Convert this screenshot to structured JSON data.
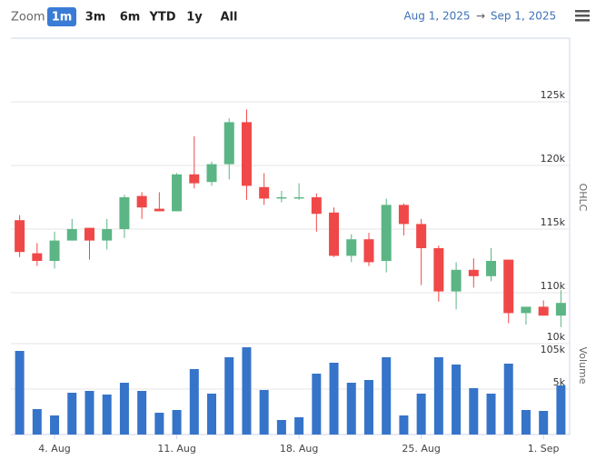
{
  "range_selector": {
    "label": "Zoom",
    "buttons": [
      "1m",
      "3m",
      "6m",
      "YTD",
      "1y",
      "All"
    ],
    "selected": 0,
    "from": "Aug 1, 2025",
    "separator": "→",
    "to": "Sep 1, 2025"
  },
  "chart_data": {
    "type": "candlestick",
    "ylabel": "OHLC",
    "y2label": "Volume",
    "xlim": [
      -0.5,
      31.5
    ],
    "xticks": [
      {
        "value": 2,
        "label": "4. Aug"
      },
      {
        "value": 9,
        "label": "11. Aug"
      },
      {
        "value": 16,
        "label": "18. Aug"
      },
      {
        "value": 23,
        "label": "25. Aug"
      },
      {
        "value": 30,
        "label": "1. Sep"
      }
    ],
    "ylim": [
      105000,
      130000
    ],
    "yticks": [
      {
        "value": 105000,
        "label": "105k"
      },
      {
        "value": 110000,
        "label": "110k"
      },
      {
        "value": 115000,
        "label": "115k"
      },
      {
        "value": 120000,
        "label": "120k"
      },
      {
        "value": 125000,
        "label": "125k"
      }
    ],
    "y2lim": [
      0,
      10000
    ],
    "y2ticks": [
      {
        "value": 5000,
        "label": "5k"
      },
      {
        "value": 10000,
        "label": "10k"
      }
    ],
    "grid": true,
    "series": [
      {
        "type": "candlestick",
        "up_color": "#5bb584",
        "down_color": "#f04848",
        "open": [
          115700,
          113100,
          112500,
          114100,
          115100,
          114100,
          115000,
          117600,
          116600,
          116400,
          119300,
          118700,
          120100,
          123400,
          118300,
          117400,
          117400,
          117500,
          116300,
          112900,
          114200,
          112500,
          116900,
          115400,
          113500,
          110100,
          111800,
          111300,
          112600,
          108400,
          108900,
          108200
        ],
        "high": [
          116100,
          113900,
          114800,
          115800,
          115100,
          115800,
          117700,
          117900,
          117900,
          119400,
          122300,
          120300,
          123700,
          124400,
          119400,
          118000,
          118600,
          117800,
          116700,
          114600,
          114700,
          117400,
          117000,
          115800,
          113700,
          112400,
          112700,
          113500,
          112600,
          108900,
          109400,
          110200
        ],
        "low": [
          112800,
          112100,
          111900,
          114100,
          112600,
          113400,
          114300,
          115800,
          116400,
          116400,
          118200,
          118400,
          118900,
          117300,
          116900,
          117100,
          117300,
          114800,
          112800,
          112400,
          112100,
          111600,
          114500,
          110600,
          109300,
          108700,
          110400,
          110900,
          107600,
          107500,
          108200,
          107300
        ],
        "close": [
          113200,
          112500,
          114100,
          115000,
          114100,
          115000,
          117500,
          116700,
          116400,
          119300,
          118600,
          120100,
          123400,
          118400,
          117400,
          117500,
          117500,
          116200,
          112900,
          114200,
          112400,
          116900,
          115400,
          113500,
          110100,
          111800,
          111300,
          112500,
          108400,
          108900,
          108200,
          109200
        ]
      },
      {
        "type": "column",
        "axis": "y2",
        "color": "#3574c9",
        "values": [
          9200,
          2800,
          2100,
          4600,
          4800,
          4400,
          5700,
          4800,
          2400,
          2700,
          7200,
          4500,
          8500,
          9600,
          4900,
          1600,
          1900,
          6700,
          7900,
          5700,
          6000,
          8500,
          2100,
          4500,
          8500,
          7700,
          5100,
          4500,
          7800,
          2700,
          2600,
          5400
        ]
      }
    ]
  }
}
